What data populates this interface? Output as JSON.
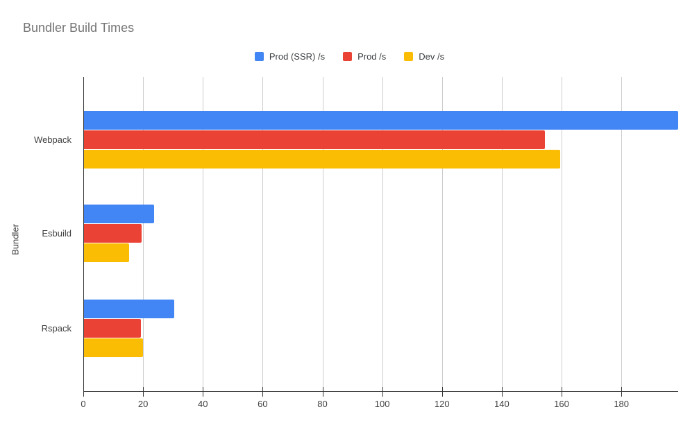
{
  "colors": {
    "background": "#ffffff",
    "title_text": "#757575",
    "axis_text": "#424242",
    "legend_text": "#3c4043",
    "gridline": "#cccccc",
    "axis_line": "#333333"
  },
  "chart_data": {
    "type": "bar",
    "orientation": "horizontal",
    "title": "Bundler Build Times",
    "xlabel": "",
    "ylabel": "Bundler",
    "categories": [
      "Webpack",
      "Esbuild",
      "Rspack"
    ],
    "series": [
      {
        "name": "Prod (SSR) /s",
        "color": "#4285F4",
        "values": [
          199,
          23.6,
          30.5
        ]
      },
      {
        "name": "Prod /s",
        "color": "#EA4335",
        "values": [
          154.4,
          19.4,
          19.2
        ]
      },
      {
        "name": "Dev /s",
        "color": "#FBBC04",
        "values": [
          159.5,
          15.3,
          20
        ]
      }
    ],
    "x_ticks": [
      0,
      20,
      40,
      60,
      80,
      100,
      120,
      140,
      160,
      180
    ],
    "x_max": 199,
    "grid": true,
    "legend_position": "top"
  }
}
